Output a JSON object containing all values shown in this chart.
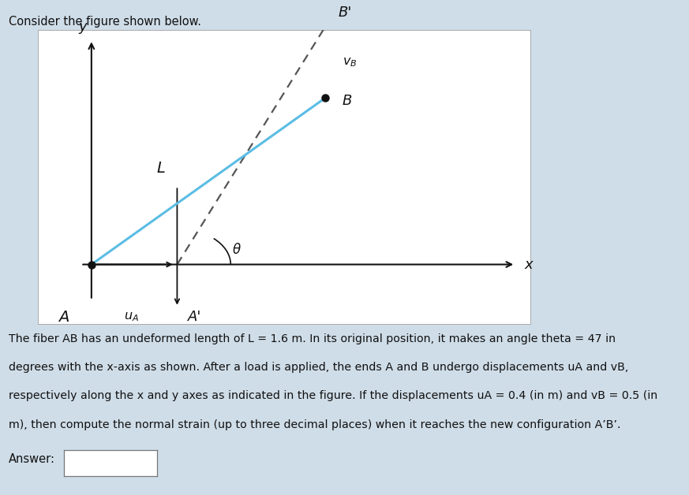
{
  "background_color": "#cfdde8",
  "box_bg": "#ffffff",
  "title_text": "Consider the figure shown below.",
  "title_fontsize": 10.5,
  "L": 1.6,
  "theta_deg": 47,
  "uA": 0.4,
  "vB": 0.5,
  "fiber_color": "#5bbde4",
  "fiber_linewidth": 2.2,
  "dashed_color": "#555555",
  "dashed_linewidth": 1.6,
  "axis_color": "#111111",
  "dot_color": "#111111",
  "arrow_color": "#111111",
  "diagram_xlim": [
    -0.25,
    2.05
  ],
  "diagram_ylim": [
    -0.42,
    1.65
  ],
  "body_lines": [
    "The fiber AB has an undeformed length of L = 1.6 m. In its original position, it makes an angle theta = 47 in",
    "degrees with the x-axis as shown. After a load is applied, the ends A and B undergo displacements uA and vB,",
    "respectively along the x and y axes as indicated in the figure. If the displacements uA = 0.4 (in m) and vB = 0.5 (in",
    "m), then compute the normal strain (up to three decimal places) when it reaches the new configuration A’B’."
  ],
  "answer_label": "Answer:"
}
